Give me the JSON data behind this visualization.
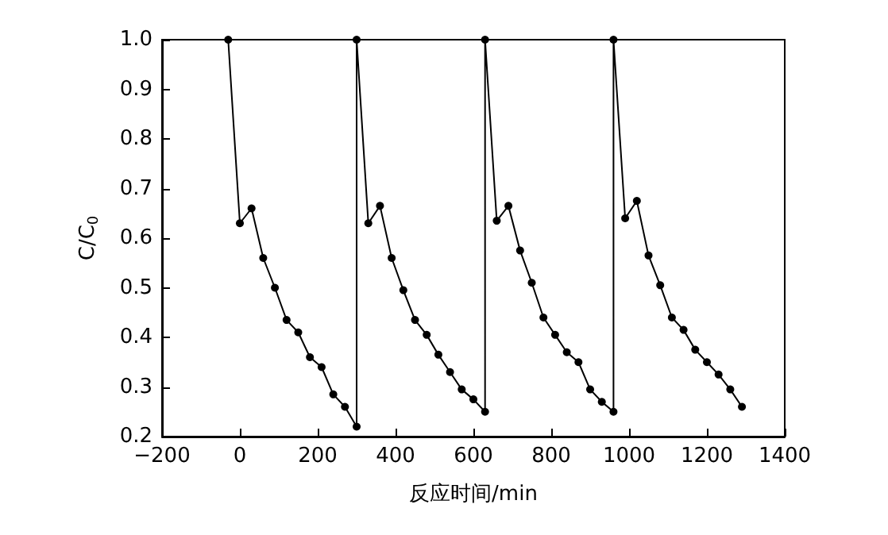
{
  "chart_data": {
    "type": "line",
    "xlabel": "反应时间/min",
    "ylabel": "C/C$_{0}$",
    "x": [
      -30,
      0,
      30,
      60,
      90,
      120,
      150,
      180,
      210,
      240,
      270,
      300,
      300,
      330,
      360,
      390,
      420,
      450,
      480,
      510,
      540,
      570,
      600,
      630,
      630,
      660,
      690,
      720,
      750,
      780,
      810,
      840,
      870,
      900,
      930,
      960,
      960,
      990,
      1020,
      1050,
      1080,
      1110,
      1140,
      1170,
      1200,
      1230,
      1260,
      1290
    ],
    "series": [
      {
        "color": "#000000",
        "values": [
          1.0,
          0.63,
          0.66,
          0.56,
          0.5,
          0.435,
          0.41,
          0.36,
          0.34,
          0.285,
          0.26,
          0.22,
          1.0,
          0.63,
          0.665,
          0.56,
          0.495,
          0.435,
          0.405,
          0.365,
          0.33,
          0.295,
          0.275,
          0.25,
          1.0,
          0.635,
          0.665,
          0.575,
          0.51,
          0.44,
          0.405,
          0.37,
          0.35,
          0.295,
          0.27,
          0.25,
          1.0,
          0.64,
          0.675,
          0.565,
          0.505,
          0.44,
          0.415,
          0.375,
          0.35,
          0.325,
          0.295,
          0.26
        ]
      }
    ],
    "xlim": [
      -200,
      1400
    ],
    "xticks": [
      -200,
      0,
      200,
      400,
      600,
      800,
      1000,
      1200,
      1400
    ],
    "ylim": [
      0.2,
      1.0
    ],
    "yticks": [
      {
        "value": 0.2,
        "label": "0.2"
      },
      {
        "value": 0.3,
        "label": "0.3"
      },
      {
        "value": 0.4,
        "label": "0.4"
      },
      {
        "value": 0.5,
        "label": "0.5"
      },
      {
        "value": 0.6,
        "label": "0.6"
      },
      {
        "value": 0.7,
        "label": "0.7"
      },
      {
        "value": 0.8,
        "label": "0.8"
      },
      {
        "value": 0.9,
        "label": "0.9"
      },
      {
        "value": 1.0,
        "label": "1.0"
      }
    ],
    "marker": "circle",
    "line_style": "solid"
  }
}
